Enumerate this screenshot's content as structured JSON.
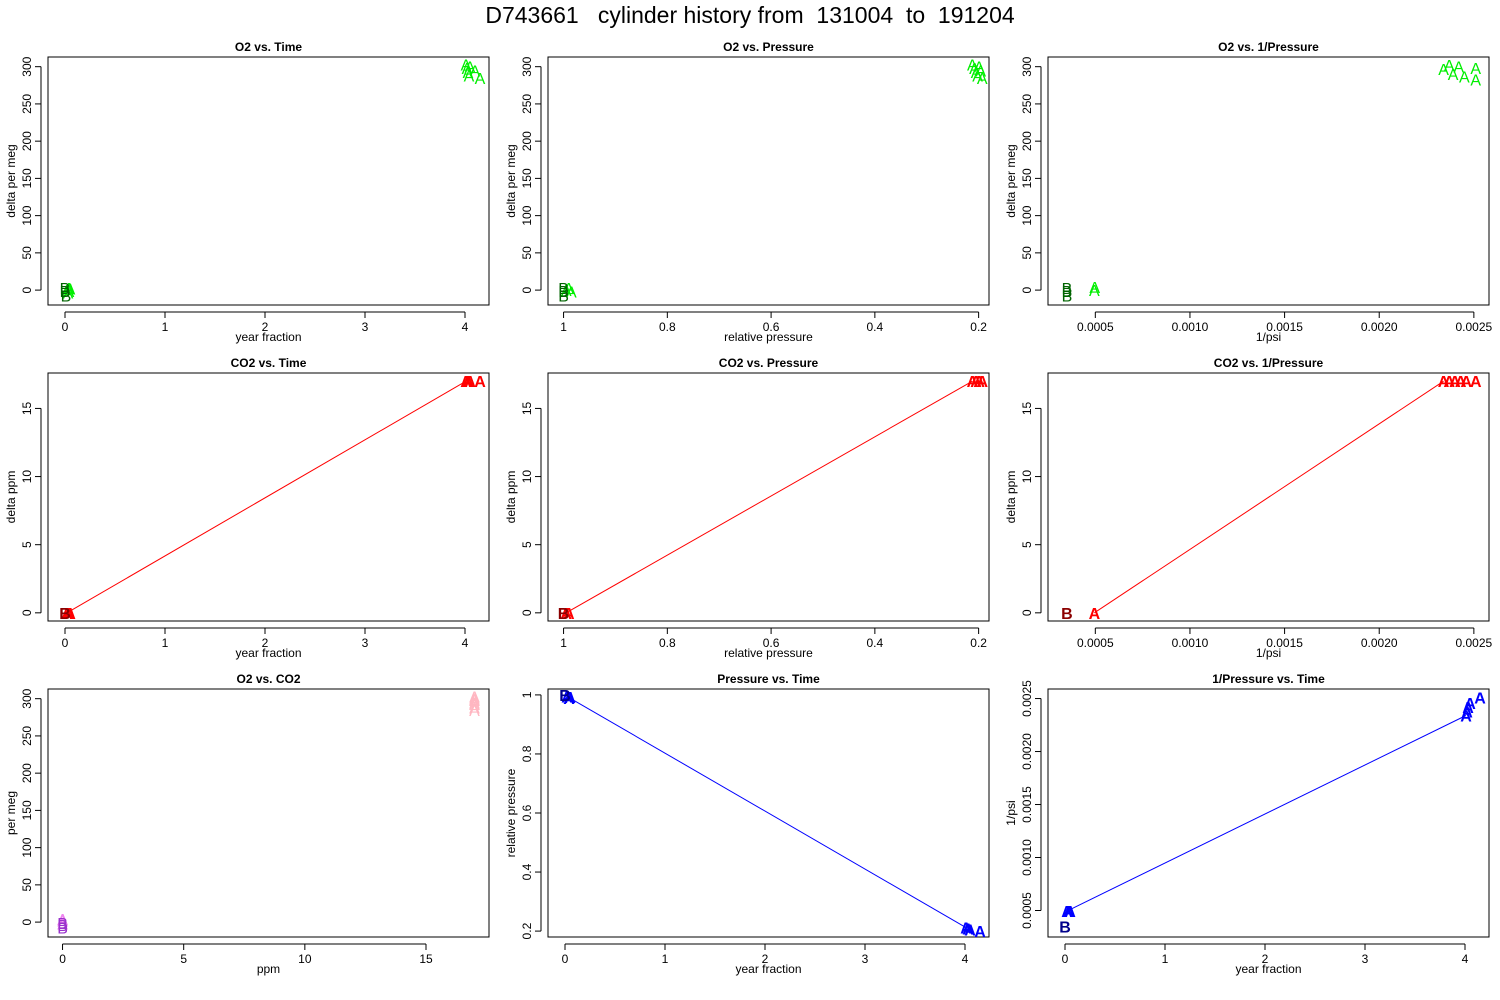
{
  "title": "D743661   cylinder history from  131004  to  191204",
  "chart_data": [
    {
      "type": "scatter",
      "title": "O2 vs. Time",
      "xlabel": "year fraction",
      "ylabel": "delta per meg",
      "xlim": [
        -0.17,
        4.24
      ],
      "ylim": [
        -20,
        313
      ],
      "xticks": [
        0,
        1,
        2,
        3,
        4
      ],
      "yticks": [
        0,
        50,
        100,
        150,
        200,
        250,
        300
      ],
      "series": [
        {
          "name": "A",
          "color": "#00ee00",
          "points": [
            [
              0.02,
              0
            ],
            [
              0.03,
              -3
            ],
            [
              0.04,
              3
            ],
            [
              0.04,
              -1
            ],
            [
              0.05,
              2
            ],
            [
              4.01,
              303
            ],
            [
              4.02,
              298
            ],
            [
              4.03,
              293
            ],
            [
              4.04,
              288
            ],
            [
              4.05,
              300
            ],
            [
              4.1,
              295
            ],
            [
              4.15,
              285
            ]
          ]
        },
        {
          "name": "B",
          "color": "#006400",
          "points": [
            [
              0.0,
              -1
            ],
            [
              0.01,
              -7
            ],
            [
              0.0,
              3
            ]
          ]
        }
      ]
    },
    {
      "type": "scatter",
      "title": "O2 vs. Pressure",
      "xlabel": "relative pressure",
      "ylabel": "delta per meg",
      "xlim": [
        1.03,
        0.18
      ],
      "ylim": [
        -20,
        313
      ],
      "xticks": [
        1.0,
        0.8,
        0.6,
        0.4,
        0.2
      ],
      "yticks": [
        0,
        50,
        100,
        150,
        200,
        250,
        300
      ],
      "series": [
        {
          "name": "A",
          "color": "#00ee00",
          "points": [
            [
              0.995,
              0
            ],
            [
              0.99,
              3
            ],
            [
              0.985,
              -2
            ],
            [
              0.212,
              303
            ],
            [
              0.208,
              298
            ],
            [
              0.205,
              293
            ],
            [
              0.202,
              288
            ],
            [
              0.199,
              300
            ],
            [
              0.196,
              295
            ],
            [
              0.193,
              285
            ]
          ]
        },
        {
          "name": "B",
          "color": "#006400",
          "points": [
            [
              1.0,
              -1
            ],
            [
              1.0,
              -7
            ],
            [
              1.0,
              3
            ]
          ]
        }
      ]
    },
    {
      "type": "scatter",
      "title": "O2 vs. 1/Pressure",
      "xlabel": "1/psi",
      "ylabel": "delta per meg",
      "xlim": [
        0.00025,
        0.00258
      ],
      "ylim": [
        -20,
        313
      ],
      "xticks": [
        0.0005,
        0.001,
        0.0015,
        0.002,
        0.0025
      ],
      "yticks": [
        0,
        50,
        100,
        150,
        200,
        250,
        300
      ],
      "series": [
        {
          "name": "A",
          "color": "#00ee00",
          "points": [
            [
              0.000495,
              0
            ],
            [
              0.000497,
              4
            ],
            [
              0.00234,
              297
            ],
            [
              0.00237,
              302
            ],
            [
              0.00239,
              290
            ],
            [
              0.00242,
              300
            ],
            [
              0.00245,
              287
            ],
            [
              0.00251,
              298
            ],
            [
              0.00251,
              283
            ]
          ]
        },
        {
          "name": "B",
          "color": "#006400",
          "points": [
            [
              0.00035,
              -1
            ],
            [
              0.00035,
              -7
            ],
            [
              0.00035,
              3
            ]
          ]
        }
      ]
    },
    {
      "type": "line",
      "title": "CO2 vs. Time",
      "xlabel": "year fraction",
      "ylabel": "delta ppm",
      "xlim": [
        -0.17,
        4.24
      ],
      "ylim": [
        -0.6,
        17.6
      ],
      "xticks": [
        0,
        1,
        2,
        3,
        4
      ],
      "yticks": [
        0,
        5,
        10,
        15
      ],
      "line": {
        "color": "#ff0000",
        "points": [
          [
            0.02,
            0
          ],
          [
            4.01,
            17
          ]
        ]
      },
      "series": [
        {
          "name": "A",
          "color": "#ff0000",
          "points": [
            [
              0.02,
              0
            ],
            [
              0.04,
              0
            ],
            [
              0.05,
              0
            ],
            [
              4.01,
              17
            ],
            [
              4.03,
              17
            ],
            [
              4.05,
              17
            ],
            [
              4.15,
              17
            ]
          ]
        },
        {
          "name": "B",
          "color": "#8b0000",
          "points": [
            [
              0.0,
              0
            ]
          ]
        }
      ]
    },
    {
      "type": "line",
      "title": "CO2 vs. Pressure",
      "xlabel": "relative pressure",
      "ylabel": "delta ppm",
      "xlim": [
        1.03,
        0.18
      ],
      "ylim": [
        -0.6,
        17.6
      ],
      "xticks": [
        1.0,
        0.8,
        0.6,
        0.4,
        0.2
      ],
      "yticks": [
        0,
        5,
        10,
        15
      ],
      "line": {
        "color": "#ff0000",
        "points": [
          [
            0.995,
            0
          ],
          [
            0.212,
            17
          ]
        ]
      },
      "series": [
        {
          "name": "A",
          "color": "#ff0000",
          "points": [
            [
              0.995,
              0
            ],
            [
              0.99,
              0
            ],
            [
              0.212,
              17
            ],
            [
              0.205,
              17
            ],
            [
              0.199,
              17
            ],
            [
              0.193,
              17
            ]
          ]
        },
        {
          "name": "B",
          "color": "#8b0000",
          "points": [
            [
              1.0,
              0
            ]
          ]
        }
      ]
    },
    {
      "type": "line",
      "title": "CO2 vs. 1/Pressure",
      "xlabel": "1/psi",
      "ylabel": "delta ppm",
      "xlim": [
        0.00025,
        0.00258
      ],
      "ylim": [
        -0.6,
        17.6
      ],
      "xticks": [
        0.0005,
        0.001,
        0.0015,
        0.002,
        0.0025
      ],
      "yticks": [
        0,
        5,
        10,
        15
      ],
      "line": {
        "color": "#ff0000",
        "points": [
          [
            0.000495,
            0
          ],
          [
            0.00234,
            17
          ]
        ]
      },
      "series": [
        {
          "name": "A",
          "color": "#ff0000",
          "points": [
            [
              0.000495,
              0
            ],
            [
              0.00234,
              17
            ],
            [
              0.00237,
              17
            ],
            [
              0.0024,
              17
            ],
            [
              0.00243,
              17
            ],
            [
              0.00246,
              17
            ],
            [
              0.00251,
              17
            ]
          ]
        },
        {
          "name": "B",
          "color": "#8b0000",
          "points": [
            [
              0.00035,
              0
            ]
          ]
        }
      ]
    },
    {
      "type": "scatter",
      "title": "O2 vs. CO2",
      "xlabel": "ppm",
      "ylabel": "per meg",
      "xlim": [
        -0.6,
        17.6
      ],
      "ylim": [
        -20,
        313
      ],
      "xticks": [
        0,
        5,
        10,
        15
      ],
      "yticks": [
        0,
        50,
        100,
        150,
        200,
        250,
        300
      ],
      "series": [
        {
          "name": "A",
          "color": "#ffb6c1",
          "points": [
            [
              17,
              303
            ],
            [
              17,
              298
            ],
            [
              17,
              293
            ],
            [
              17,
              288
            ],
            [
              17,
              300
            ],
            [
              17,
              295
            ],
            [
              17,
              285
            ]
          ]
        },
        {
          "name": "A",
          "color": "#ee82ee",
          "points": [
            [
              0,
              2
            ],
            [
              0,
              -2
            ],
            [
              0,
              4
            ]
          ]
        },
        {
          "name": "B",
          "color": "#9932cc",
          "points": [
            [
              0,
              -1
            ],
            [
              0,
              -7
            ],
            [
              0,
              -4
            ]
          ]
        }
      ]
    },
    {
      "type": "line",
      "title": "Pressure vs. Time",
      "xlabel": "year fraction",
      "ylabel": "relative pressure",
      "xlim": [
        -0.17,
        4.24
      ],
      "ylim": [
        0.18,
        1.02
      ],
      "xticks": [
        0,
        1,
        2,
        3,
        4
      ],
      "yticks": [
        0.2,
        0.4,
        0.6,
        0.8,
        1.0
      ],
      "line": {
        "color": "#0000ff",
        "points": [
          [
            0.02,
            0.995
          ],
          [
            4.01,
            0.212
          ]
        ]
      },
      "series": [
        {
          "name": "A",
          "color": "#0000ff",
          "points": [
            [
              0.02,
              0.995
            ],
            [
              0.04,
              0.99
            ],
            [
              0.05,
              0.993
            ],
            [
              4.01,
              0.212
            ],
            [
              4.03,
              0.208
            ],
            [
              4.05,
              0.205
            ],
            [
              4.15,
              0.2
            ]
          ]
        },
        {
          "name": "B",
          "color": "#00008b",
          "points": [
            [
              0.0,
              1.0
            ]
          ]
        }
      ]
    },
    {
      "type": "line",
      "title": "1/Pressure vs. Time",
      "xlabel": "year fraction",
      "ylabel": "1/psi",
      "xlim": [
        -0.17,
        4.24
      ],
      "ylim": [
        0.00025,
        0.00259
      ],
      "xticks": [
        0,
        1,
        2,
        3,
        4
      ],
      "yticks": [
        0.0005,
        0.001,
        0.0015,
        0.002,
        0.0025
      ],
      "line": {
        "color": "#0000ff",
        "points": [
          [
            0.02,
            0.000495
          ],
          [
            4.01,
            0.00234
          ]
        ]
      },
      "series": [
        {
          "name": "A",
          "color": "#0000ff",
          "points": [
            [
              0.02,
              0.000495
            ],
            [
              0.04,
              0.000497
            ],
            [
              0.05,
              0.000496
            ],
            [
              4.01,
              0.00234
            ],
            [
              4.02,
              0.00238
            ],
            [
              4.03,
              0.00242
            ],
            [
              4.05,
              0.00246
            ],
            [
              4.15,
              0.00251
            ]
          ]
        },
        {
          "name": "B",
          "color": "#00008b",
          "points": [
            [
              0.0,
              0.00035
            ]
          ]
        }
      ]
    }
  ]
}
